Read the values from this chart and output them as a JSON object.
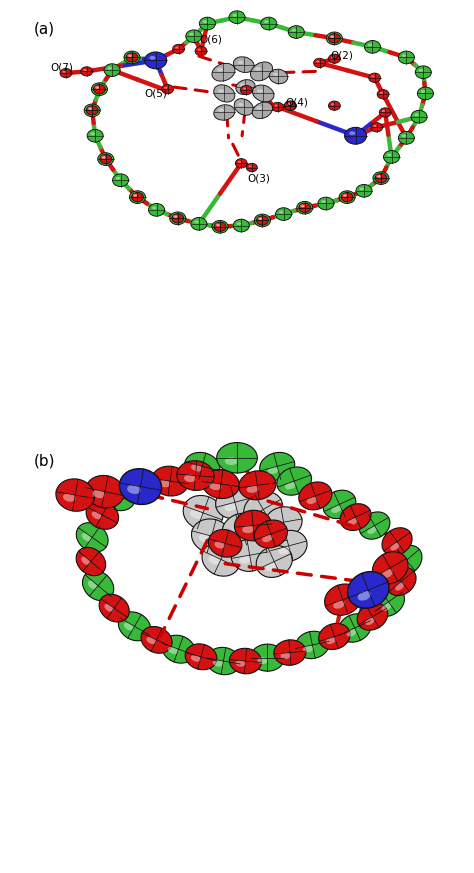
{
  "figure_width": 4.74,
  "figure_height": 8.73,
  "dpi": 100,
  "bg_color": "#ffffff",
  "label_a": "(a)",
  "label_b": "(b)",
  "label_fontsize": 11,
  "colors": {
    "green": "#3ab83a",
    "red": "#d41212",
    "blue": "#2828cc",
    "gray": "#aaaaaa",
    "gray_light": "#c8c8c8",
    "black": "#111111",
    "white": "#ffffff",
    "dashed_red": "#cc0000"
  },
  "panel_a": {
    "bond_lw": 3.2,
    "node_green_r": [
      0.02,
      0.016
    ],
    "node_red_r": [
      0.015,
      0.012
    ],
    "node_blue_r": [
      0.028,
      0.022
    ],
    "gray_ellipsoid_scale": 1.0
  },
  "panel_b": {
    "bond_lw": 3.0,
    "ellipsoid_scale": 1.0
  }
}
